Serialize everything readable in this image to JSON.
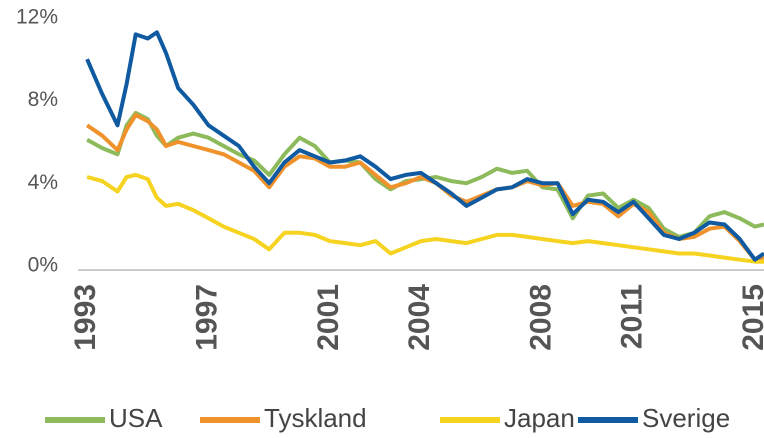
{
  "chart_data": {
    "type": "line",
    "x": [
      1993.0,
      1993.5,
      1994.0,
      1994.3,
      1994.6,
      1995.0,
      1995.3,
      1995.6,
      1996.0,
      1996.5,
      1997.0,
      1997.5,
      1998.0,
      1998.5,
      1999.0,
      1999.5,
      2000.0,
      2000.5,
      2001.0,
      2001.5,
      2002.0,
      2002.5,
      2003.0,
      2003.5,
      2004.0,
      2004.5,
      2005.0,
      2005.5,
      2006.0,
      2006.5,
      2007.0,
      2007.5,
      2008.0,
      2008.5,
      2009.0,
      2009.5,
      2010.0,
      2010.5,
      2011.0,
      2011.5,
      2012.0,
      2012.5,
      2013.0,
      2013.5,
      2014.0,
      2014.5,
      2015.0,
      2015.3
    ],
    "series": [
      {
        "name": "USA",
        "color": "#8dba5a",
        "values": [
          6.3,
          5.9,
          5.6,
          7.0,
          7.6,
          7.3,
          6.5,
          6.0,
          6.4,
          6.6,
          6.4,
          6.0,
          5.6,
          5.3,
          4.6,
          5.6,
          6.4,
          6.0,
          5.2,
          5.3,
          5.2,
          4.4,
          3.9,
          4.3,
          4.4,
          4.5,
          4.3,
          4.2,
          4.5,
          4.9,
          4.7,
          4.8,
          4.0,
          3.9,
          2.5,
          3.6,
          3.7,
          3.0,
          3.4,
          3.0,
          2.0,
          1.6,
          1.8,
          2.6,
          2.8,
          2.5,
          2.1,
          2.2
        ]
      },
      {
        "name": "Tyskland",
        "color": "#f0922b",
        "values": [
          7.0,
          6.5,
          5.8,
          6.8,
          7.5,
          7.2,
          6.8,
          6.0,
          6.2,
          6.0,
          5.8,
          5.6,
          5.2,
          4.8,
          4.0,
          5.0,
          5.5,
          5.4,
          5.0,
          5.0,
          5.2,
          4.6,
          4.0,
          4.2,
          4.5,
          4.2,
          3.6,
          3.3,
          3.6,
          3.9,
          4.0,
          4.3,
          4.1,
          4.2,
          3.1,
          3.3,
          3.2,
          2.6,
          3.2,
          2.8,
          1.8,
          1.5,
          1.6,
          2.0,
          2.1,
          1.4,
          0.5,
          0.6
        ]
      },
      {
        "name": "Japan",
        "color": "#f5d320",
        "values": [
          4.5,
          4.3,
          3.8,
          4.5,
          4.6,
          4.4,
          3.5,
          3.1,
          3.2,
          2.9,
          2.5,
          2.1,
          1.8,
          1.5,
          1.0,
          1.8,
          1.8,
          1.7,
          1.4,
          1.3,
          1.2,
          1.4,
          0.8,
          1.1,
          1.4,
          1.5,
          1.4,
          1.3,
          1.5,
          1.7,
          1.7,
          1.6,
          1.5,
          1.4,
          1.3,
          1.4,
          1.3,
          1.2,
          1.1,
          1.0,
          0.9,
          0.8,
          0.8,
          0.7,
          0.6,
          0.5,
          0.4,
          0.4
        ]
      },
      {
        "name": "Sverige",
        "color": "#0f5aa0",
        "values": [
          10.2,
          8.5,
          7.0,
          9.0,
          11.4,
          11.2,
          11.5,
          10.5,
          8.8,
          8.0,
          7.0,
          6.5,
          6.0,
          5.0,
          4.2,
          5.2,
          5.8,
          5.5,
          5.2,
          5.3,
          5.5,
          5.0,
          4.4,
          4.6,
          4.7,
          4.2,
          3.7,
          3.1,
          3.5,
          3.9,
          4.0,
          4.4,
          4.2,
          4.2,
          2.7,
          3.4,
          3.3,
          2.8,
          3.3,
          2.5,
          1.7,
          1.5,
          1.8,
          2.3,
          2.2,
          1.5,
          0.5,
          0.8
        ]
      }
    ],
    "xlim": [
      1992.7,
      2015.3
    ],
    "xticks": [
      1993,
      1997,
      2001,
      2004,
      2008,
      2011,
      2015
    ],
    "ylim": [
      0,
      12
    ],
    "yticks": [
      {
        "value": 0,
        "label": "0%"
      },
      {
        "value": 4,
        "label": "4%"
      },
      {
        "value": 8,
        "label": "8%"
      },
      {
        "value": 12,
        "label": "12%"
      }
    ],
    "grid": false,
    "legend": "bottom"
  }
}
